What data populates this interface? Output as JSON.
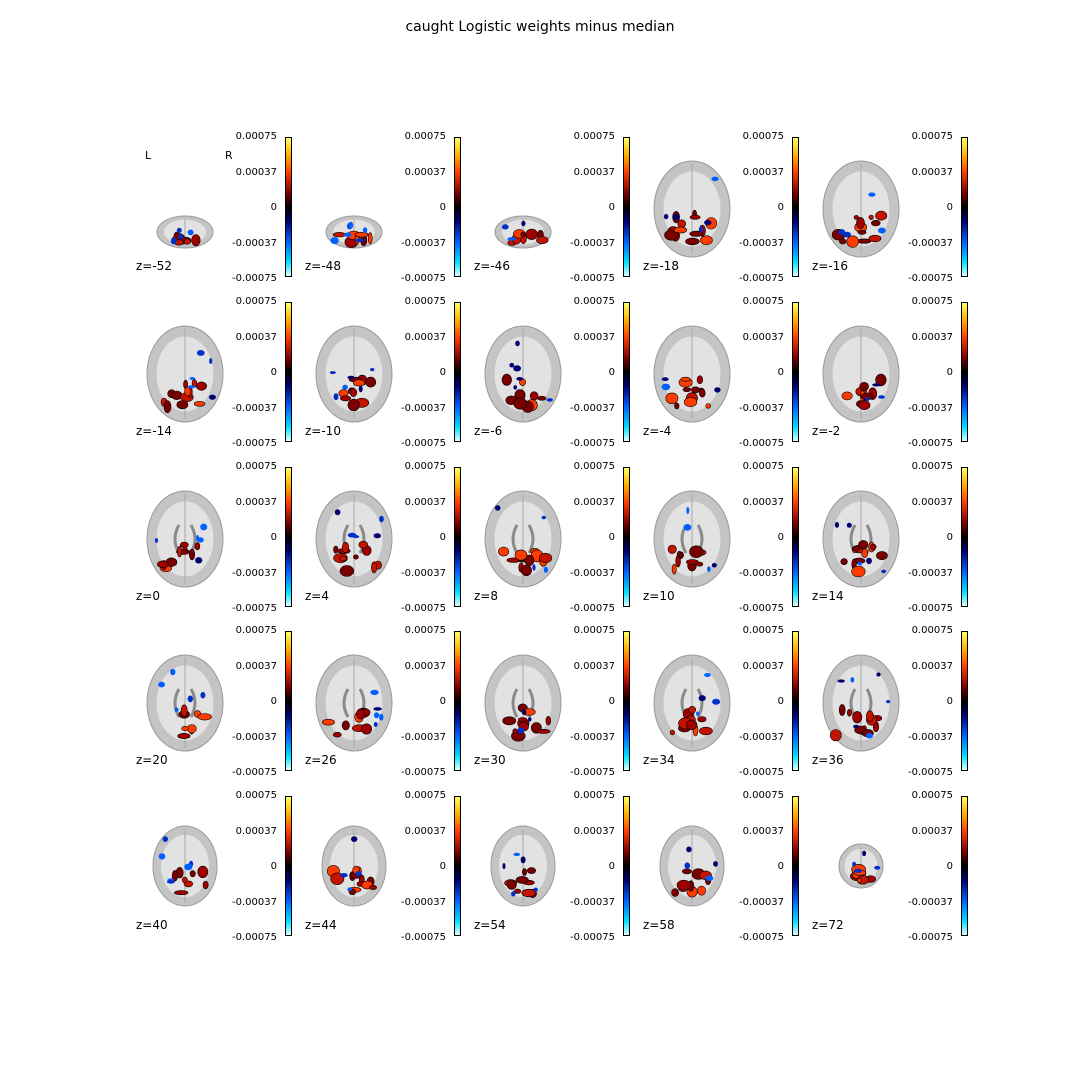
{
  "title": "caught Logistic weights minus median",
  "orientation": {
    "left": "L",
    "right": "R"
  },
  "colorbar_ticks": [
    "0.00075",
    "0.00037",
    "0",
    "-0.00037",
    "-0.00075"
  ],
  "colorbar_colors": [
    "#ffff66",
    "#ff3c00",
    "#000000",
    "#0060ff",
    "#dcffff"
  ],
  "slices": [
    "z=-52",
    "z=-48",
    "z=-46",
    "z=-18",
    "z=-16",
    "z=-14",
    "z=-10",
    "z=-6",
    "z=-4",
    "z=-2",
    "z=0",
    "z=4",
    "z=8",
    "z=10",
    "z=14",
    "z=20",
    "z=26",
    "z=30",
    "z=34",
    "z=36",
    "z=40",
    "z=44",
    "z=54",
    "z=58",
    "z=72"
  ]
}
